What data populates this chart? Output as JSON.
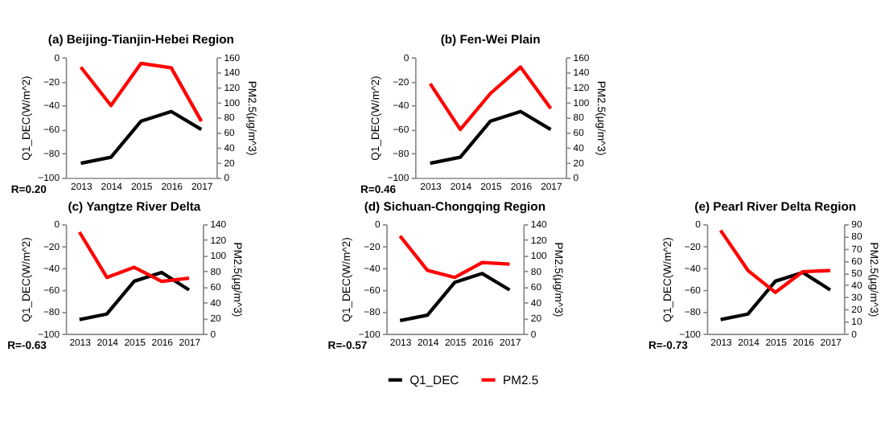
{
  "chart_data": [
    {
      "type": "line",
      "title": "(a) Beijing-Tianjin-Hebei Region",
      "categories": [
        "2013",
        "2014",
        "2015",
        "2016",
        "2017"
      ],
      "ylabel": "Q1_DEC(W/m^2)",
      "y2label": "PM2.5(µg/m^3)",
      "ylim": [
        -100,
        0
      ],
      "yticks": [
        -100,
        -80,
        -60,
        -40,
        -20,
        0
      ],
      "y2lim": [
        0,
        160
      ],
      "y2ticks": [
        0,
        20,
        40,
        60,
        80,
        100,
        120,
        140,
        160
      ],
      "grid": false,
      "marker": "none",
      "line_style": "solid",
      "annotations": [
        "R=0.20"
      ],
      "series": [
        {
          "color": "#000000",
          "values": [
            -88,
            -83,
            -53,
            -45,
            -60
          ]
        },
        {
          "color": "#ff0000",
          "axis": "y2",
          "values": [
            147,
            96,
            152,
            146,
            75
          ]
        }
      ]
    },
    {
      "type": "line",
      "title": "(b) Fen-Wei Plain",
      "categories": [
        "2013",
        "2014",
        "2015",
        "2016",
        "2017"
      ],
      "ylabel": "Q1_DEC(W/m^2)",
      "y2label": "PM2.5(µg/m^3)",
      "ylim": [
        -100,
        0
      ],
      "yticks": [
        -100,
        -80,
        -60,
        -40,
        -20,
        0
      ],
      "y2lim": [
        0,
        160
      ],
      "y2ticks": [
        0,
        20,
        40,
        60,
        80,
        100,
        120,
        140,
        160
      ],
      "grid": false,
      "marker": "none",
      "line_style": "solid",
      "annotations": [
        "R=0.46"
      ],
      "series": [
        {
          "color": "#000000",
          "values": [
            -88,
            -83,
            -53,
            -45,
            -60
          ]
        },
        {
          "color": "#ff0000",
          "axis": "y2",
          "values": [
            125,
            64,
            112,
            147,
            92
          ]
        }
      ]
    },
    {
      "type": "line",
      "title": "(c) Yangtze River Delta",
      "categories": [
        "2013",
        "2014",
        "2015",
        "2016",
        "2017"
      ],
      "ylabel": "Q1_DEC(W/m^2)",
      "y2label": "PM2.5(µg/m^3)",
      "ylim": [
        -100,
        0
      ],
      "yticks": [
        -100,
        -80,
        -60,
        -40,
        -20,
        0
      ],
      "y2lim": [
        0,
        140
      ],
      "y2ticks": [
        0,
        20,
        40,
        60,
        80,
        100,
        120,
        140
      ],
      "grid": false,
      "marker": "none",
      "line_style": "solid",
      "annotations": [
        "R=-0.63"
      ],
      "series": [
        {
          "color": "#000000",
          "values": [
            -87,
            -82,
            -52,
            -44,
            -60
          ]
        },
        {
          "color": "#ff0000",
          "axis": "y2",
          "values": [
            130,
            72,
            85,
            67,
            71
          ]
        }
      ]
    },
    {
      "type": "line",
      "title": "(d) Sichuan-Chongqing Region",
      "categories": [
        "2013",
        "2014",
        "2015",
        "2016",
        "2017"
      ],
      "ylabel": "Q1_DEC(W/m^2)",
      "y2label": "PM2.5(µg/m^3)",
      "ylim": [
        -100,
        0
      ],
      "yticks": [
        -100,
        -80,
        -60,
        -40,
        -20,
        0
      ],
      "y2lim": [
        0,
        140
      ],
      "y2ticks": [
        0,
        20,
        40,
        60,
        80,
        100,
        120,
        140
      ],
      "grid": false,
      "marker": "none",
      "line_style": "solid",
      "legend": "bottom",
      "annotations": [
        "R=-0.57"
      ],
      "series": [
        {
          "name": "Q1_DEC",
          "color": "#000000",
          "values": [
            -88,
            -83,
            -53,
            -45,
            -60
          ]
        },
        {
          "name": "PM2.5",
          "color": "#ff0000",
          "axis": "y2",
          "values": [
            125,
            81,
            72,
            91,
            89
          ]
        }
      ]
    },
    {
      "type": "line",
      "title": "(e) Pearl River Delta Region",
      "categories": [
        "2013",
        "2014",
        "2015",
        "2016",
        "2017"
      ],
      "ylabel": "Q1_DEC(W/m^2)",
      "y2label": "PM2.5(µg/m^3)",
      "ylim": [
        -100,
        0
      ],
      "yticks": [
        -100,
        -80,
        -60,
        -40,
        -20,
        0
      ],
      "y2lim": [
        0,
        90
      ],
      "y2ticks": [
        0,
        10,
        20,
        30,
        40,
        50,
        60,
        70,
        80,
        90
      ],
      "grid": false,
      "marker": "none",
      "line_style": "solid",
      "annotations": [
        "R=-0.73"
      ],
      "series": [
        {
          "color": "#000000",
          "values": [
            -87,
            -82,
            -52,
            -44,
            -60
          ]
        },
        {
          "color": "#ff0000",
          "axis": "y2",
          "values": [
            85,
            52,
            34,
            51,
            52
          ]
        }
      ]
    }
  ]
}
